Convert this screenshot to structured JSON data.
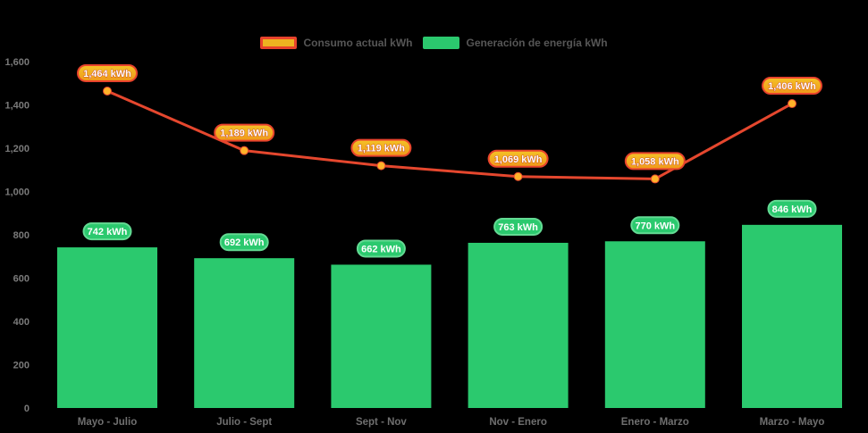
{
  "chart_data": {
    "type": "combo-bar-line",
    "title": "",
    "background": "#000000",
    "grid": false,
    "legend_position": "top",
    "categories": [
      "Mayo - Julio",
      "Julio - Sept",
      "Sept - Nov",
      "Nov - Enero",
      "Enero - Marzo",
      "Marzo - Mayo"
    ],
    "series": [
      {
        "name": "Consumo actual kWh",
        "type": "line",
        "color": "#E5472E",
        "marker_color": "#FFB329",
        "label_bg_top": "#F4C227",
        "label_bg_bottom": "#F0981B",
        "label_border": "#E8432C",
        "label_text_color": "#FFFFFF",
        "legend_swatch": {
          "fill": "#EDB320",
          "border": "#E8432C"
        },
        "values": [
          1464,
          1189,
          1119,
          1069,
          1058,
          1406
        ],
        "point_labels": [
          "1,464 kWh",
          "1,189 kWh",
          "1,119 kWh",
          "1,069 kWh",
          "1,058 kWh",
          "1,406 kWh"
        ]
      },
      {
        "name": "Generación de energía kWh",
        "type": "bar",
        "color": "#2BC96E",
        "label_border": "#63DA93",
        "label_text_color": "#FFFFFF",
        "legend_swatch": {
          "fill": "#2BC96E",
          "border": "#2BC96E"
        },
        "values": [
          742,
          692,
          662,
          763,
          770,
          846
        ],
        "point_labels": [
          "742 kWh",
          "692 kWh",
          "662 kWh",
          "763 kWh",
          "770 kWh",
          "846 kWh"
        ]
      }
    ],
    "yaxis": {
      "min": 0,
      "max": 1600,
      "tick_step": 200,
      "tick_labels": [
        "0",
        "200",
        "400",
        "600",
        "800",
        "1,000",
        "1,200",
        "1,400",
        "1,600"
      ],
      "label_color": "#7A7A7A"
    },
    "xaxis": {
      "label_color": "#6F6F6F"
    }
  }
}
